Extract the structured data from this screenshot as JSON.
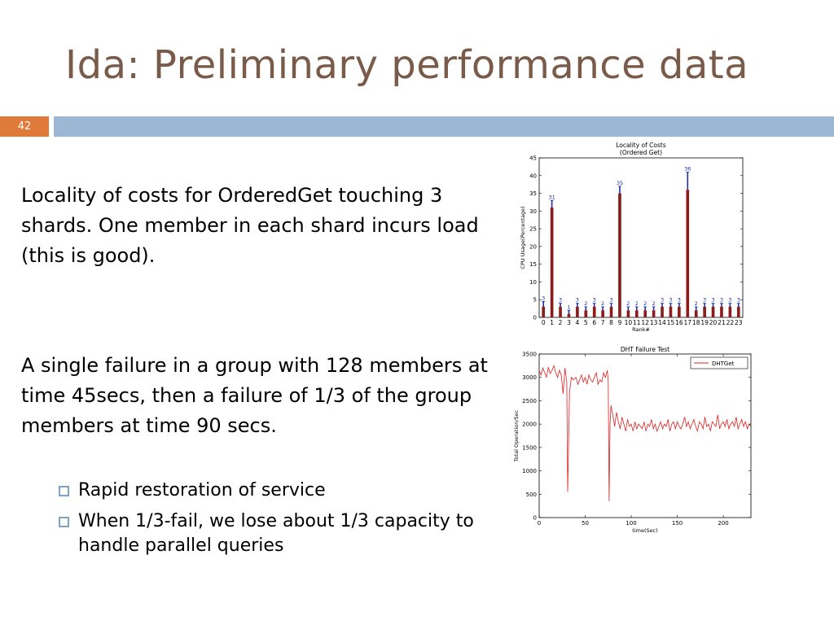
{
  "slide": {
    "title": "Ida: Preliminary performance data",
    "number": "42",
    "paragraph1": "Locality of costs for  OrderedGet touching 3 shards.  One member in each shard incurs load (this is good).",
    "paragraph2": "A single failure in a group with 128 members at time 45secs, then a failure of 1/3 of the group members at time 90 secs.",
    "bullets": [
      "Rapid restoration of service",
      "When 1/3-fail, we lose about 1/3 capacity to handle parallel queries"
    ]
  },
  "colors": {
    "title": "#7a5b4a",
    "accent": "#e07a3b",
    "band": "#9bb7d4",
    "bar": "#8b1c1c",
    "error": "#1f2ea8",
    "line": "#e02020"
  },
  "chart_data": [
    {
      "type": "bar",
      "title": "Locality of Costs",
      "subtitle": "(Ordered Get)",
      "xlabel": "Rank#",
      "ylabel": "CPU Usage(Percentage)",
      "ylim": [
        0,
        45
      ],
      "yticks": [
        0,
        5,
        10,
        15,
        20,
        25,
        30,
        35,
        40,
        45
      ],
      "categories": [
        "0",
        "1",
        "2",
        "3",
        "4",
        "5",
        "6",
        "7",
        "8",
        "9",
        "10",
        "11",
        "12",
        "13",
        "14",
        "15",
        "16",
        "17",
        "18",
        "19",
        "20",
        "21",
        "22",
        "23"
      ],
      "values": [
        3,
        31,
        3,
        1,
        3,
        2,
        3,
        2,
        3,
        35,
        2,
        2,
        2,
        2,
        3,
        3,
        3,
        36,
        2,
        3,
        3,
        3,
        3,
        3
      ],
      "bar_labels": [
        "3",
        "31",
        "3",
        "1",
        "3",
        "2",
        "3",
        "2",
        "3",
        "35",
        "2",
        "2",
        "2",
        "2",
        "3",
        "3",
        "3",
        "36",
        "2",
        "3",
        "3",
        "3",
        "3",
        "3"
      ],
      "error_high": [
        4.5,
        33,
        4,
        2,
        4,
        3,
        4,
        3,
        4,
        37,
        3,
        3,
        3,
        3,
        4,
        4,
        4,
        41,
        3,
        4,
        4,
        4,
        4,
        4
      ],
      "grid": false
    },
    {
      "type": "line",
      "title": "DHT Failure Test",
      "xlabel": "time(Sec)",
      "ylabel": "Total Operation/Sec",
      "xlim": [
        0,
        230
      ],
      "ylim": [
        0,
        3500
      ],
      "xticks": [
        0,
        50,
        100,
        150,
        200
      ],
      "yticks": [
        0,
        500,
        1000,
        1500,
        2000,
        2500,
        3000,
        3500
      ],
      "legend": "top-right",
      "series": [
        {
          "name": "DHTGet",
          "x": [
            0,
            2,
            4,
            6,
            8,
            10,
            12,
            14,
            16,
            18,
            20,
            22,
            24,
            26,
            28,
            30,
            31,
            33,
            35,
            37,
            40,
            42,
            44,
            46,
            48,
            50,
            52,
            54,
            56,
            58,
            60,
            62,
            64,
            66,
            68,
            70,
            72,
            74,
            75,
            76,
            77,
            78,
            80,
            82,
            84,
            86,
            88,
            90,
            92,
            94,
            96,
            98,
            100,
            102,
            104,
            106,
            108,
            110,
            112,
            114,
            116,
            118,
            120,
            122,
            124,
            126,
            128,
            130,
            132,
            134,
            136,
            138,
            140,
            142,
            144,
            146,
            148,
            150,
            152,
            154,
            156,
            158,
            160,
            162,
            164,
            166,
            168,
            170,
            172,
            174,
            176,
            178,
            180,
            182,
            184,
            186,
            188,
            190,
            192,
            194,
            196,
            198,
            200,
            202,
            204,
            206,
            208,
            210,
            212,
            214,
            216,
            218,
            220,
            222,
            224,
            226,
            228,
            230
          ],
          "y": [
            3150,
            3050,
            3200,
            3100,
            3000,
            3220,
            3080,
            3150,
            3250,
            3100,
            3000,
            3150,
            3050,
            2650,
            3200,
            2900,
            550,
            2700,
            3000,
            2950,
            3000,
            2850,
            2950,
            3050,
            2900,
            3000,
            2850,
            3050,
            2950,
            2900,
            3000,
            3100,
            2850,
            2950,
            2900,
            3100,
            3000,
            3150,
            2900,
            350,
            2000,
            2400,
            2200,
            1950,
            2250,
            2050,
            1900,
            2150,
            2000,
            1850,
            2100,
            1950,
            2000,
            1850,
            2050,
            1900,
            2000,
            1950,
            1900,
            2050,
            1850,
            2000,
            1950,
            2100,
            1900,
            2000,
            1850,
            1950,
            2050,
            1900,
            2000,
            1950,
            2100,
            1850,
            2000,
            2050,
            1900,
            2050,
            1950,
            1900,
            2000,
            2150,
            1950,
            2050,
            1900,
            2000,
            2100,
            1950,
            1850,
            2050,
            2000,
            1900,
            2150,
            1950,
            2000,
            1850,
            2050,
            2000,
            1950,
            2200,
            1900,
            2000,
            2050,
            1950,
            2100,
            1900,
            2000,
            2050,
            1950,
            2150,
            1900,
            2000,
            2100,
            1950,
            2050,
            1900,
            2000,
            1950
          ]
        }
      ]
    }
  ]
}
